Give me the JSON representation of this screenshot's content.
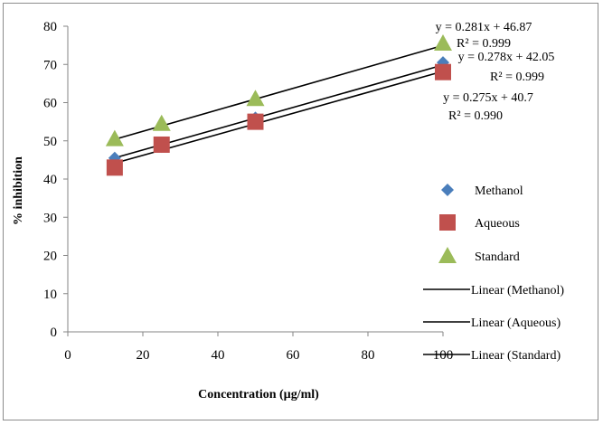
{
  "chart_data": {
    "type": "scatter",
    "title": "",
    "xlabel": "Concentration (µg/ml)",
    "ylabel": "% inhibition",
    "xlim": [
      0,
      100
    ],
    "ylim": [
      0,
      80
    ],
    "xticks": [
      "0",
      "20",
      "40",
      "60",
      "80",
      "100"
    ],
    "yticks": [
      "0",
      "10",
      "20",
      "30",
      "40",
      "50",
      "60",
      "70",
      "80"
    ],
    "grid": false,
    "legend_position": "right",
    "series": [
      {
        "name": "Methanol",
        "marker": "diamond",
        "color": "#4a7ebb",
        "x": [
          12.5,
          25,
          50,
          100
        ],
        "y": [
          45.5,
          48.5,
          56,
          70.5
        ],
        "trend_label": "Linear (Methanol)",
        "equation": "y = 0.278x + 42.05",
        "r2": "R² = 0.999",
        "slope": 0.278,
        "intercept": 42.05
      },
      {
        "name": "Aqueous",
        "marker": "square",
        "color": "#c0504d",
        "x": [
          12.5,
          25,
          50,
          100
        ],
        "y": [
          43,
          49,
          55,
          68
        ],
        "trend_label": "Linear (Aqueous)",
        "equation": "y = 0.275x + 40.7",
        "r2": "R² = 0.990",
        "slope": 0.275,
        "intercept": 40.7
      },
      {
        "name": "Standard",
        "marker": "triangle",
        "color": "#9bbb59",
        "x": [
          12.5,
          25,
          50,
          100
        ],
        "y": [
          50.5,
          54.5,
          61,
          75.5
        ],
        "trend_label": "Linear (Standard)",
        "equation": "y = 0.281x + 46.87",
        "r2": "R² = 0.999",
        "slope": 0.281,
        "intercept": 46.87
      }
    ]
  }
}
